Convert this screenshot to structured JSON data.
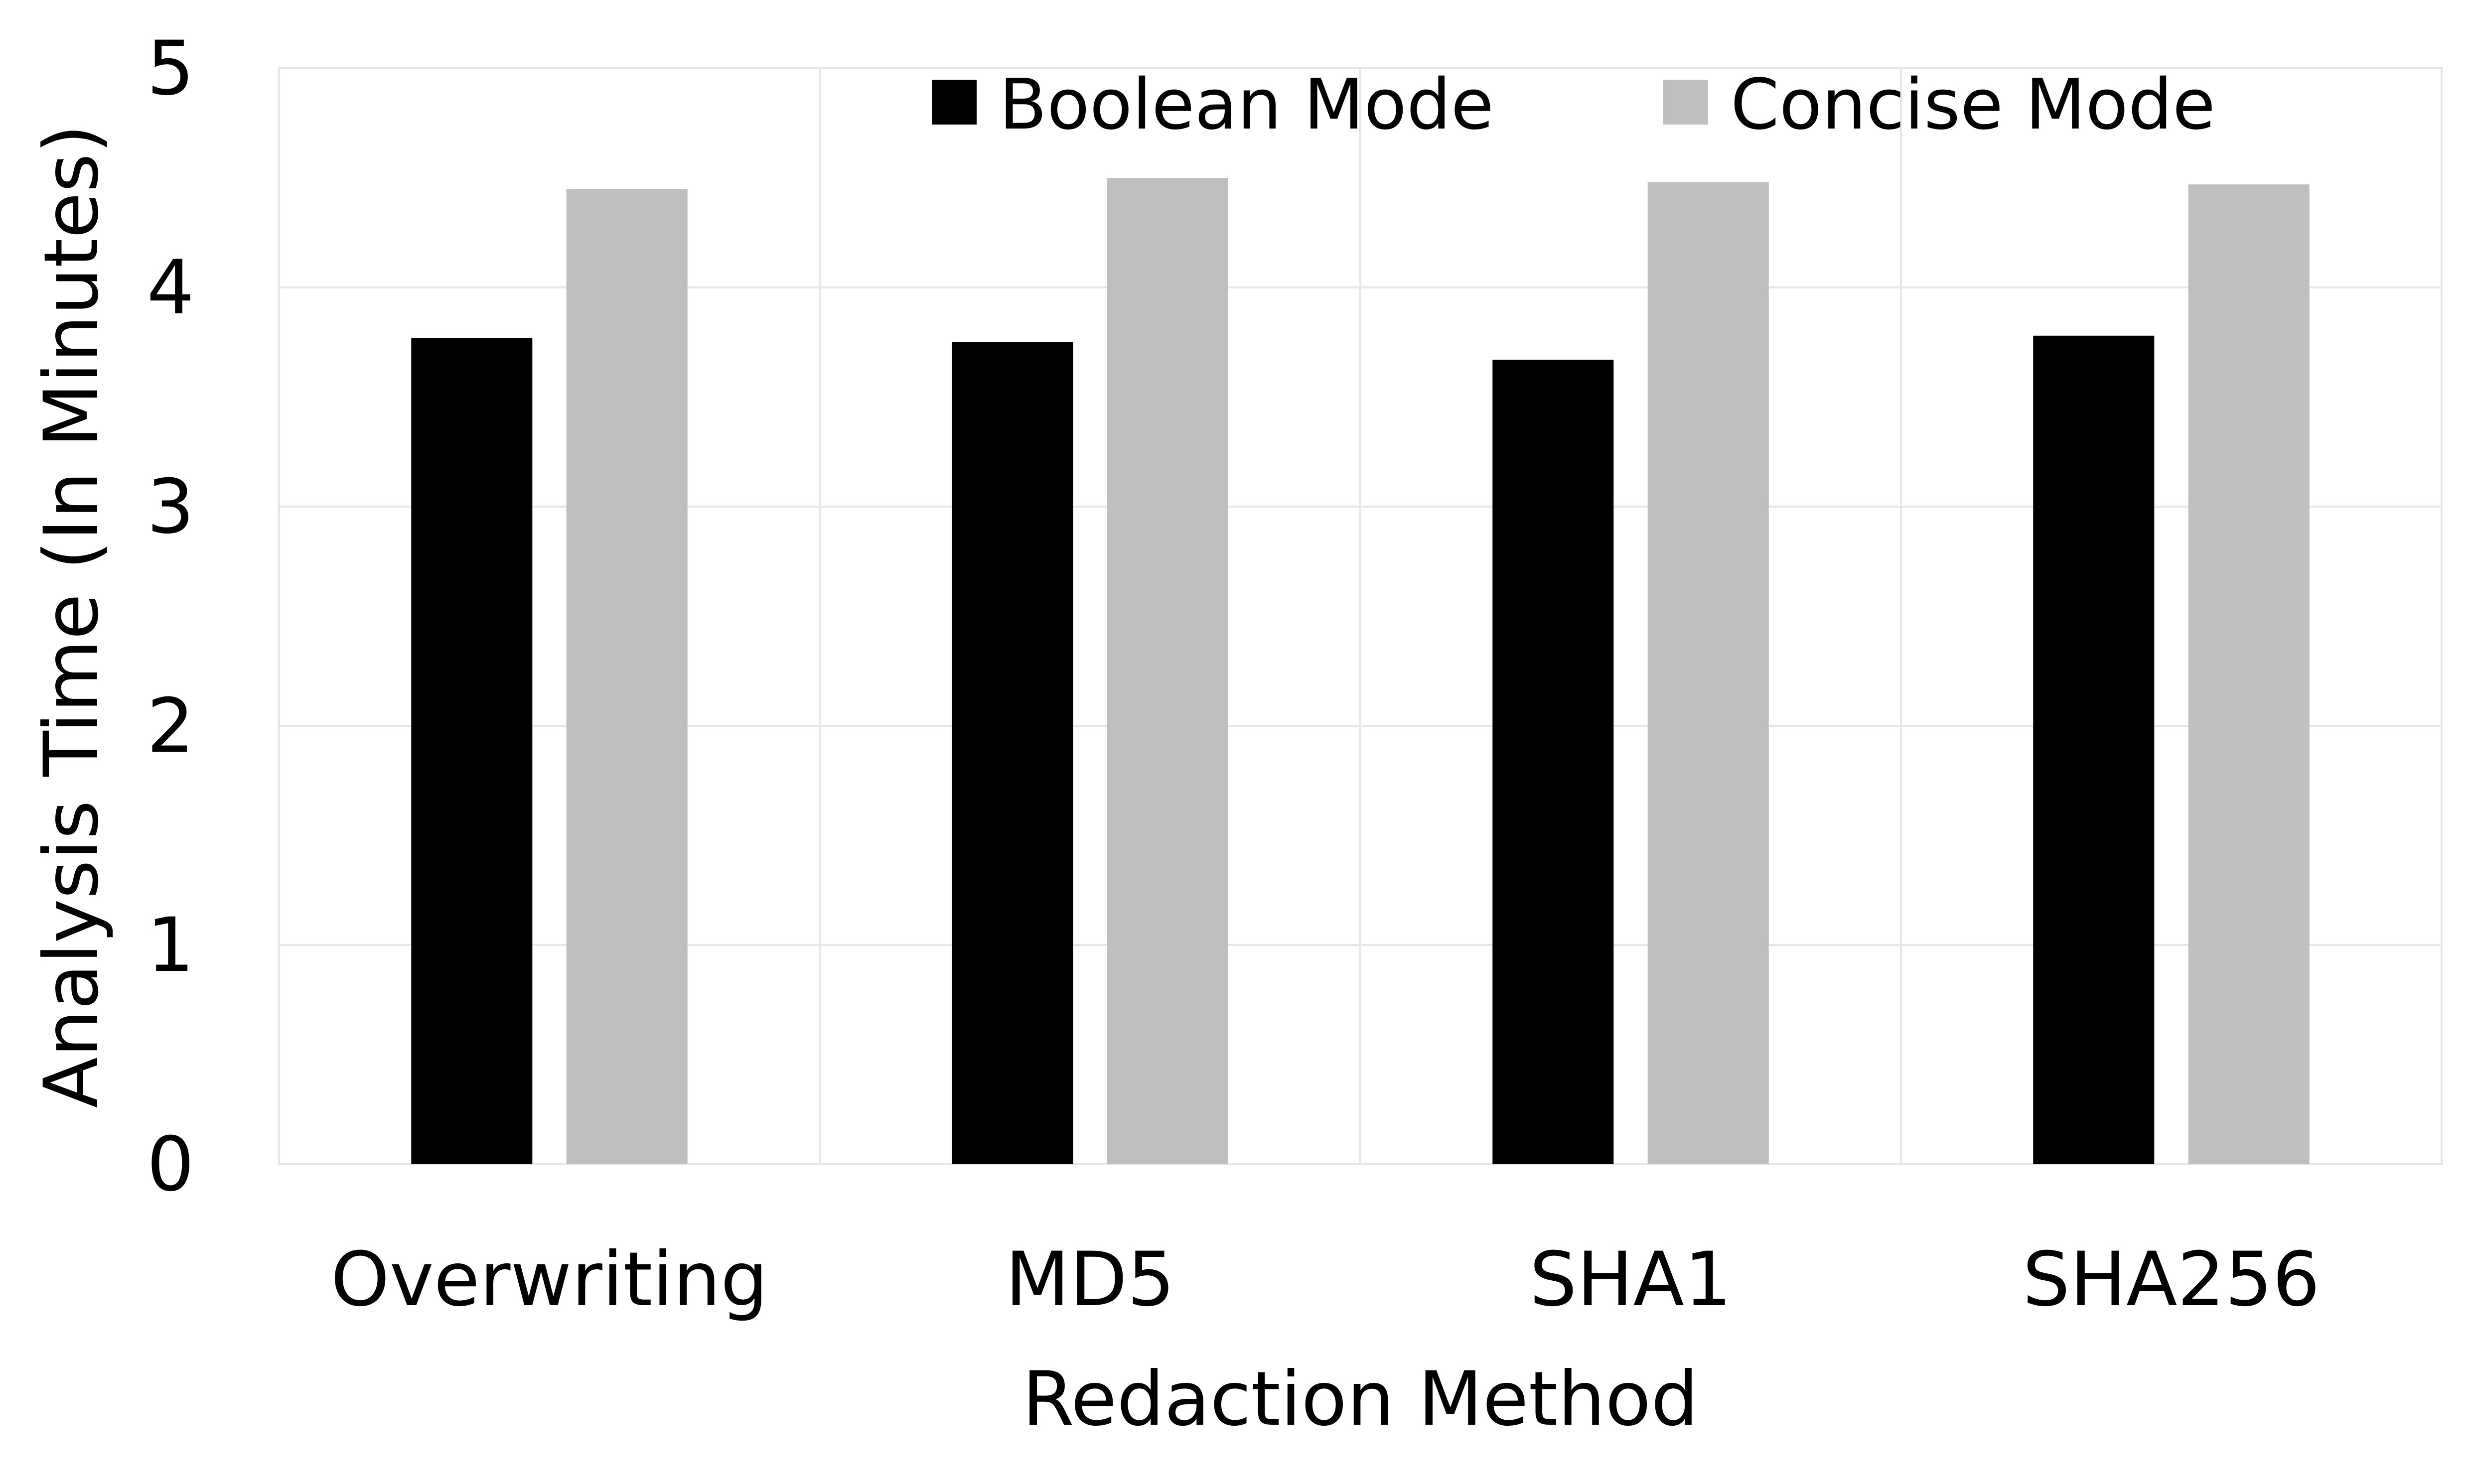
{
  "chart_data": {
    "type": "bar",
    "categories": [
      "Overwriting",
      "MD5",
      "SHA1",
      "SHA256"
    ],
    "series": [
      {
        "name": "Boolean Mode",
        "values": [
          3.77,
          3.75,
          3.67,
          3.78
        ],
        "color": "#000000"
      },
      {
        "name": "Concise Mode",
        "values": [
          4.45,
          4.5,
          4.48,
          4.47
        ],
        "color": "#bfbfbf"
      }
    ],
    "xlabel": "Redaction Method",
    "ylabel": "Analysis Time (In Minutes)",
    "ylim": [
      0,
      5
    ],
    "yticks": [
      "0",
      "1",
      "2",
      "3",
      "4",
      "5"
    ],
    "grid": true,
    "legend_position": "top"
  }
}
